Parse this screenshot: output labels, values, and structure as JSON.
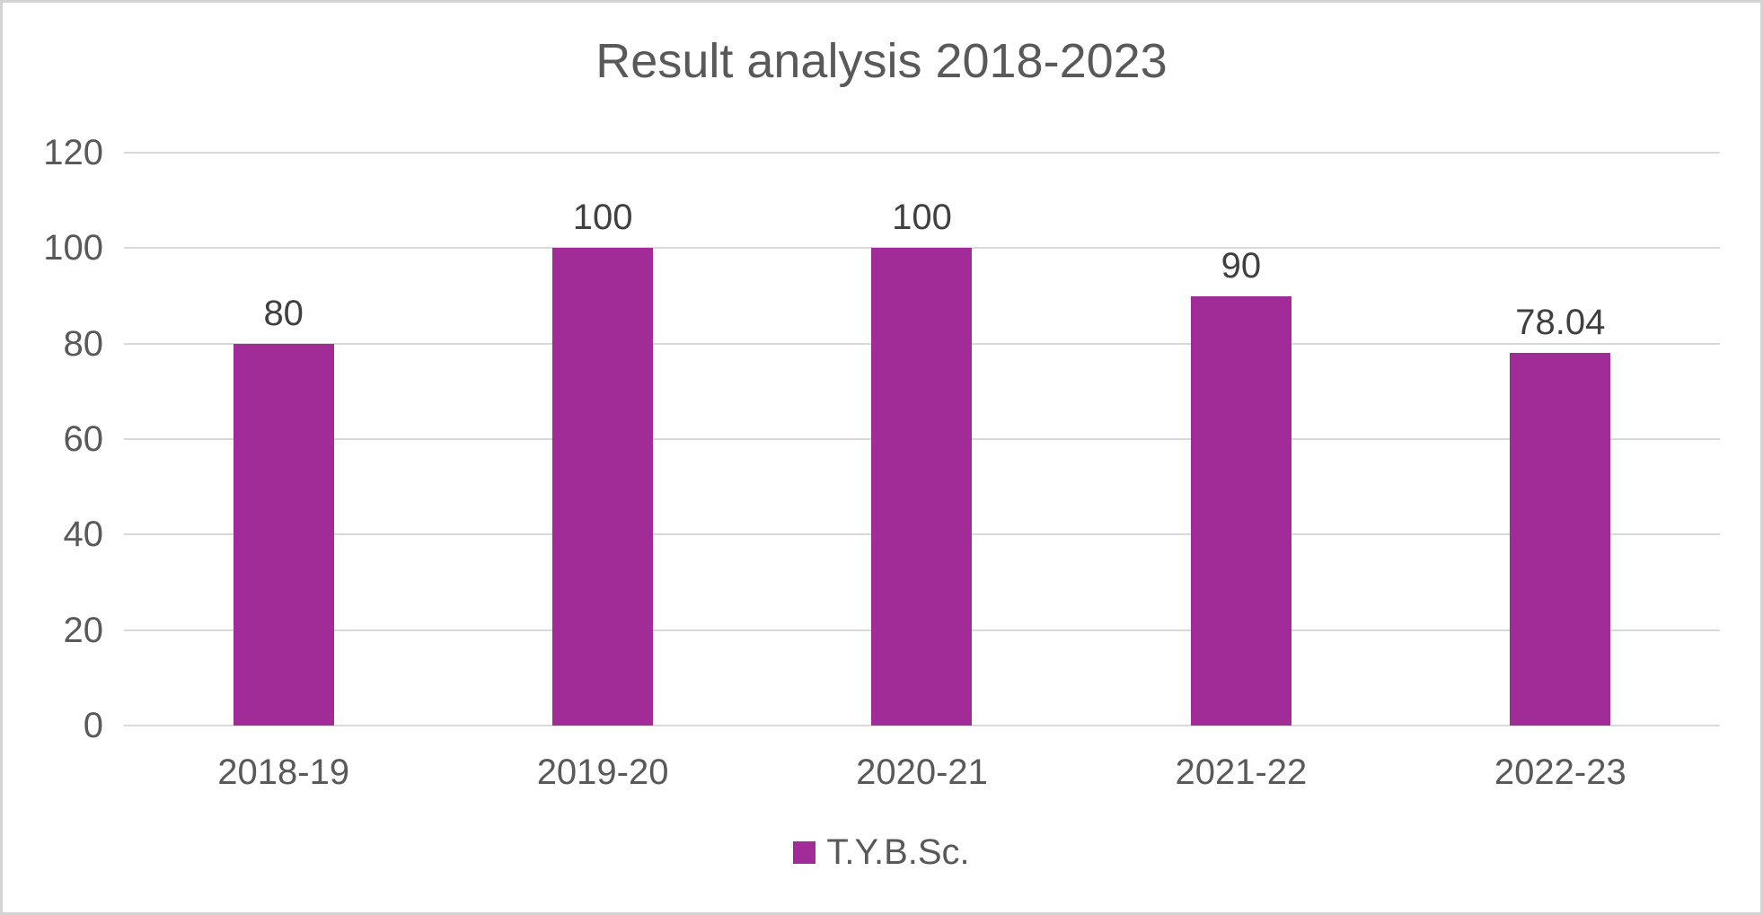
{
  "frame": {
    "background": "#ffffff",
    "border_color": "#d4d4d4"
  },
  "chart_data": {
    "type": "bar",
    "title": "Result analysis 2018-2023",
    "categories": [
      "2018-19",
      "2019-20",
      "2020-21",
      "2021-22",
      "2022-23"
    ],
    "series": [
      {
        "name": "T.Y.B.Sc.",
        "color": "#a12c98",
        "values": [
          80,
          100,
          100,
          90,
          78.04
        ],
        "data_labels": [
          "80",
          "100",
          "100",
          "90",
          "78.04"
        ]
      }
    ],
    "xlabel": "",
    "ylabel": "",
    "ylim": [
      0,
      120
    ],
    "y_step": 20,
    "y_tick_labels": [
      "0",
      "20",
      "40",
      "60",
      "80",
      "100",
      "120"
    ],
    "grid": true,
    "legend_position": "bottom",
    "colors": {
      "title_text": "#595959",
      "axis_text": "#595959",
      "data_label_text": "#404040",
      "gridline": "#d9d9d9",
      "bar": "#a12c98"
    }
  },
  "legend": {
    "items": [
      {
        "label": "T.Y.B.Sc.",
        "color": "#a12c98"
      }
    ]
  }
}
